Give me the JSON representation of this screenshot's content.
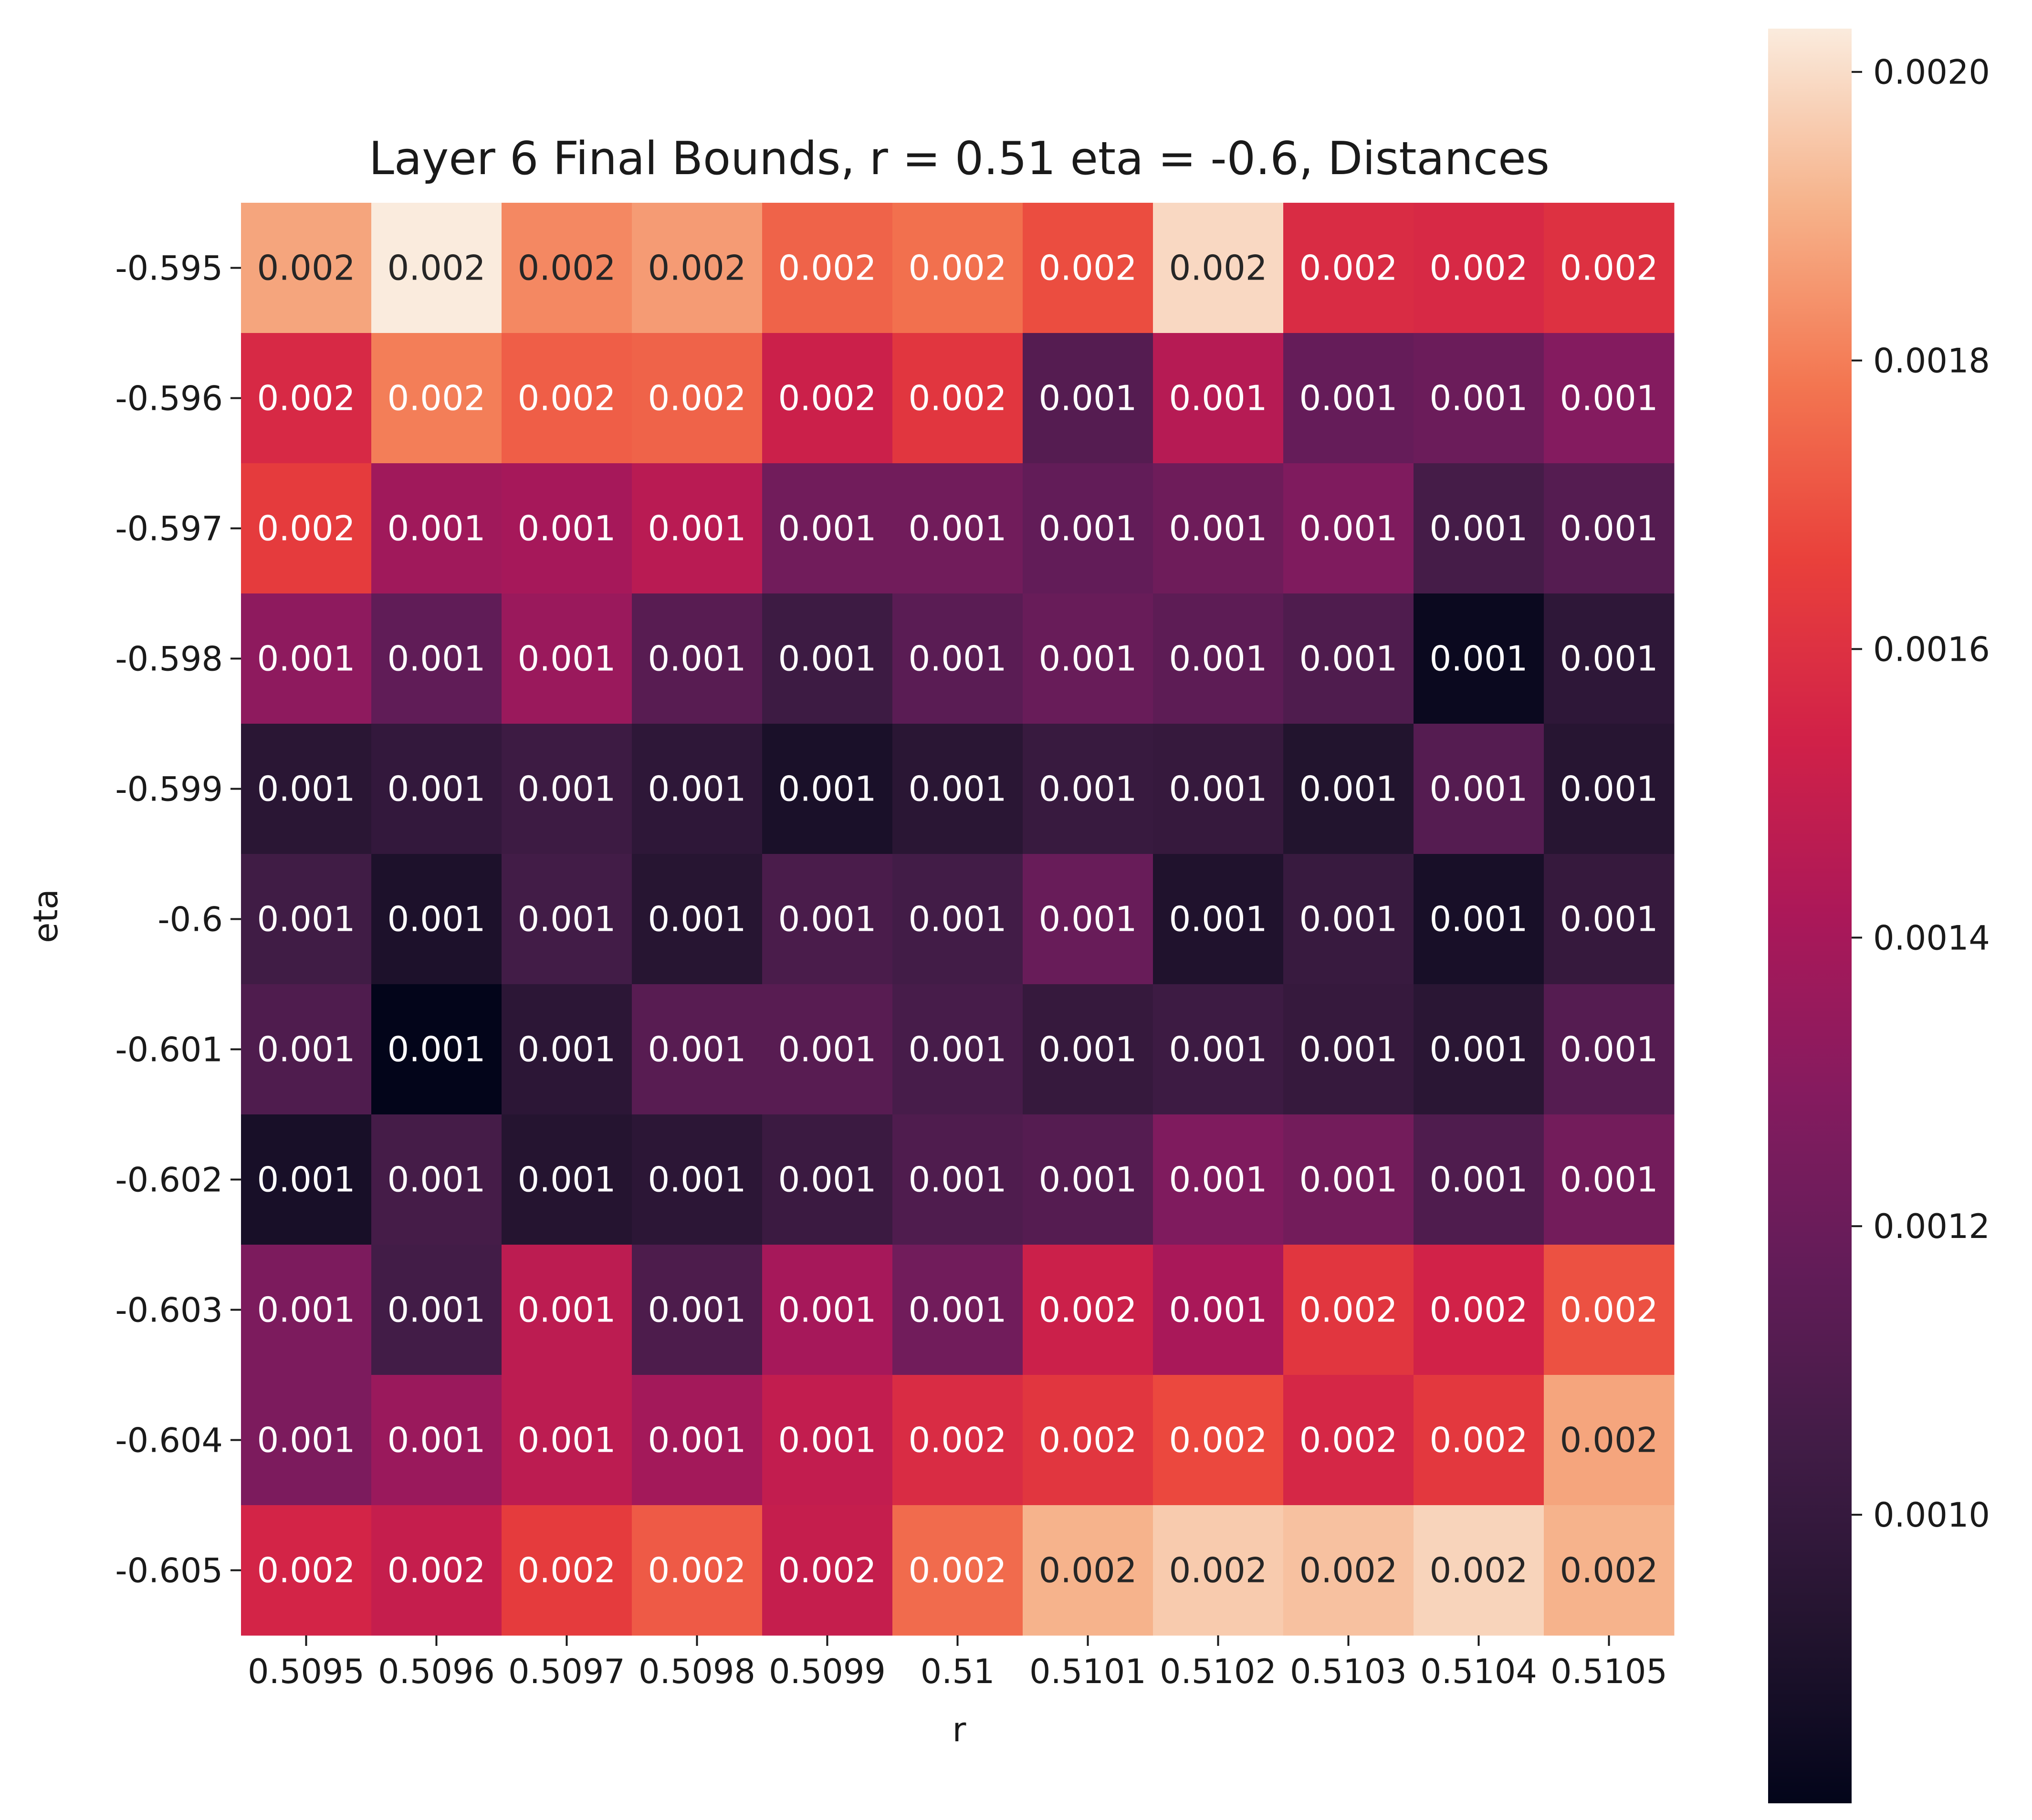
{
  "chart_data": {
    "type": "heatmap",
    "title": "Layer 6 Final Bounds, r = 0.51 eta = -0.6, Distances",
    "xlabel": "r",
    "ylabel": "eta",
    "x_categories": [
      "0.5095",
      "0.5096",
      "0.5097",
      "0.5098",
      "0.5099",
      "0.51",
      "0.5101",
      "0.5102",
      "0.5103",
      "0.5104",
      "0.5105"
    ],
    "y_categories": [
      "-0.595",
      "-0.596",
      "-0.597",
      "-0.598",
      "-0.599",
      "-0.6",
      "-0.601",
      "-0.602",
      "-0.603",
      "-0.604",
      "-0.605"
    ],
    "values": [
      [
        0.00188,
        0.00203,
        0.00182,
        0.00186,
        0.00174,
        0.00177,
        0.00169,
        0.00199,
        0.00158,
        0.00157,
        0.0016
      ],
      [
        0.00157,
        0.0018,
        0.00173,
        0.00174,
        0.00152,
        0.00162,
        0.00112,
        0.00145,
        0.00118,
        0.0012,
        0.00129
      ],
      [
        0.00164,
        0.00138,
        0.0014,
        0.00146,
        0.00122,
        0.00122,
        0.00117,
        0.00121,
        0.00127,
        0.00106,
        0.00112
      ],
      [
        0.00132,
        0.00116,
        0.00136,
        0.00113,
        0.00103,
        0.00114,
        0.00119,
        0.00115,
        0.0011,
        0.00083,
        0.00097
      ],
      [
        0.00095,
        0.00099,
        0.00103,
        0.00097,
        0.00089,
        0.00095,
        0.00101,
        0.001,
        0.00092,
        0.00112,
        0.00094
      ],
      [
        0.00104,
        0.0009,
        0.00105,
        0.00094,
        0.00108,
        0.00105,
        0.00119,
        0.00091,
        0.00101,
        0.00088,
        0.001
      ],
      [
        0.0011,
        0.0008,
        0.00096,
        0.00113,
        0.00113,
        0.00107,
        0.001,
        0.00103,
        0.001,
        0.00095,
        0.00112
      ],
      [
        0.00088,
        0.00106,
        0.00093,
        0.00096,
        0.00102,
        0.0011,
        0.00112,
        0.00127,
        0.00123,
        0.0011,
        0.00123
      ],
      [
        0.00126,
        0.00105,
        0.00147,
        0.00109,
        0.0014,
        0.00122,
        0.00152,
        0.00141,
        0.00162,
        0.00154,
        0.0017
      ],
      [
        0.00126,
        0.00136,
        0.00147,
        0.00139,
        0.00149,
        0.00158,
        0.00162,
        0.00168,
        0.00156,
        0.00163,
        0.00188
      ],
      [
        0.00155,
        0.0015,
        0.00164,
        0.00172,
        0.0015,
        0.00176,
        0.00191,
        0.00196,
        0.00194,
        0.00198,
        0.00191
      ]
    ],
    "cell_labels": [
      [
        "0.002",
        "0.002",
        "0.002",
        "0.002",
        "0.002",
        "0.002",
        "0.002",
        "0.002",
        "0.002",
        "0.002",
        "0.002"
      ],
      [
        "0.002",
        "0.002",
        "0.002",
        "0.002",
        "0.002",
        "0.002",
        "0.001",
        "0.001",
        "0.001",
        "0.001",
        "0.001"
      ],
      [
        "0.002",
        "0.001",
        "0.001",
        "0.001",
        "0.001",
        "0.001",
        "0.001",
        "0.001",
        "0.001",
        "0.001",
        "0.001"
      ],
      [
        "0.001",
        "0.001",
        "0.001",
        "0.001",
        "0.001",
        "0.001",
        "0.001",
        "0.001",
        "0.001",
        "0.001",
        "0.001"
      ],
      [
        "0.001",
        "0.001",
        "0.001",
        "0.001",
        "0.001",
        "0.001",
        "0.001",
        "0.001",
        "0.001",
        "0.001",
        "0.001"
      ],
      [
        "0.001",
        "0.001",
        "0.001",
        "0.001",
        "0.001",
        "0.001",
        "0.001",
        "0.001",
        "0.001",
        "0.001",
        "0.001"
      ],
      [
        "0.001",
        "0.001",
        "0.001",
        "0.001",
        "0.001",
        "0.001",
        "0.001",
        "0.001",
        "0.001",
        "0.001",
        "0.001"
      ],
      [
        "0.001",
        "0.001",
        "0.001",
        "0.001",
        "0.001",
        "0.001",
        "0.001",
        "0.001",
        "0.001",
        "0.001",
        "0.001"
      ],
      [
        "0.001",
        "0.001",
        "0.001",
        "0.001",
        "0.001",
        "0.001",
        "0.002",
        "0.001",
        "0.002",
        "0.002",
        "0.002"
      ],
      [
        "0.001",
        "0.001",
        "0.001",
        "0.001",
        "0.001",
        "0.002",
        "0.002",
        "0.002",
        "0.002",
        "0.002",
        "0.002"
      ],
      [
        "0.002",
        "0.002",
        "0.002",
        "0.002",
        "0.002",
        "0.002",
        "0.002",
        "0.002",
        "0.002",
        "0.002",
        "0.002"
      ]
    ],
    "colorbar": {
      "min": 0.0008,
      "max": 0.00203,
      "ticks": [
        "0.0010",
        "0.0012",
        "0.0014",
        "0.0016",
        "0.0018",
        "0.0020"
      ],
      "tick_values": [
        0.001,
        0.0012,
        0.0014,
        0.0016,
        0.0018,
        0.002
      ],
      "colormap": "rocket"
    }
  }
}
